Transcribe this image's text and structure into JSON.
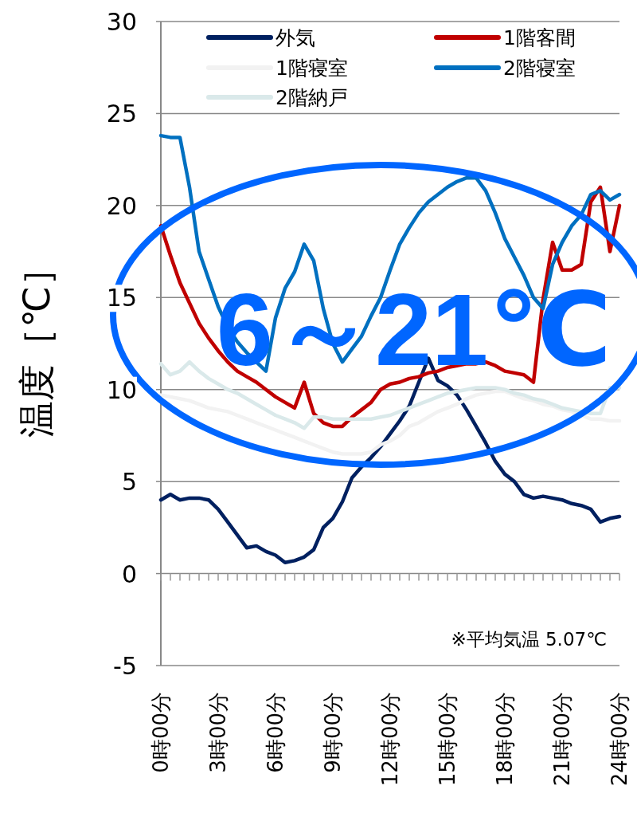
{
  "chart_data": {
    "type": "line",
    "ylabel": "温度［℃］",
    "categories": [
      "0時00分",
      null,
      null,
      null,
      null,
      null,
      "3時00分",
      null,
      null,
      null,
      null,
      null,
      "6時00分",
      null,
      null,
      null,
      null,
      null,
      "9時00分",
      null,
      null,
      null,
      null,
      null,
      "12時00分",
      null,
      null,
      null,
      null,
      null,
      "15時00分",
      null,
      null,
      null,
      null,
      null,
      "18時00分",
      null,
      null,
      null,
      null,
      null,
      "21時00分",
      null,
      null,
      null,
      null,
      null,
      "24時00分"
    ],
    "ylim": [
      -5,
      30
    ],
    "yticks": [
      -5,
      0,
      5,
      10,
      15,
      20,
      25,
      30
    ],
    "grid": "y",
    "legend": "top",
    "marker": "none",
    "line_style": "solid",
    "annotations": [
      "6～21℃",
      "※平均気温 5.07℃"
    ],
    "series": [
      {
        "name": "外気",
        "color": "#002060",
        "values": [
          4.0,
          4.3,
          4.0,
          4.1,
          4.1,
          4.0,
          3.5,
          2.8,
          2.1,
          1.4,
          1.5,
          1.2,
          1.0,
          0.6,
          0.7,
          0.9,
          1.3,
          2.5,
          3.0,
          3.9,
          5.2,
          5.8,
          6.3,
          6.9,
          7.6,
          8.3,
          9.1,
          10.4,
          11.7,
          10.5,
          10.2,
          9.7,
          8.9,
          8.0,
          7.1,
          6.1,
          5.4,
          5.0,
          4.3,
          4.1,
          4.2,
          4.1,
          4.0,
          3.8,
          3.7,
          3.5,
          2.8,
          3.0,
          3.1
        ]
      },
      {
        "name": "1階客間",
        "color": "#c00000",
        "values": [
          18.9,
          17.3,
          15.8,
          14.7,
          13.6,
          12.8,
          12.1,
          11.5,
          11.0,
          10.7,
          10.4,
          10.0,
          9.6,
          9.3,
          9.0,
          10.4,
          8.7,
          8.2,
          8.0,
          8.0,
          8.5,
          8.9,
          9.3,
          10.0,
          10.3,
          10.4,
          10.6,
          10.7,
          10.9,
          11.0,
          11.2,
          11.3,
          11.4,
          11.4,
          11.5,
          11.3,
          11.0,
          10.9,
          10.8,
          10.4,
          14.9,
          18.0,
          16.5,
          16.5,
          16.8,
          20.2,
          21.0,
          17.5,
          20.0
        ]
      },
      {
        "name": "1階寝室",
        "color": "#f2f2f2",
        "values": [
          9.7,
          9.6,
          9.5,
          9.4,
          9.2,
          9.0,
          8.9,
          8.8,
          8.6,
          8.4,
          8.2,
          8.0,
          7.8,
          7.6,
          7.4,
          7.2,
          7.0,
          6.8,
          6.6,
          6.5,
          6.5,
          6.5,
          6.6,
          7.0,
          7.2,
          7.5,
          8.0,
          8.2,
          8.5,
          8.8,
          9.0,
          9.2,
          9.5,
          9.7,
          9.8,
          9.9,
          9.9,
          9.7,
          9.5,
          9.4,
          9.2,
          9.1,
          8.9,
          8.8,
          8.6,
          8.4,
          8.4,
          8.3,
          8.3
        ]
      },
      {
        "name": "2階寝室",
        "color": "#0070c0",
        "values": [
          23.8,
          23.7,
          23.7,
          21.0,
          17.5,
          16.0,
          14.5,
          13.4,
          12.6,
          12.0,
          11.5,
          11.0,
          13.9,
          15.5,
          16.4,
          17.9,
          17.0,
          14.4,
          12.5,
          11.5,
          12.2,
          12.9,
          14.0,
          15.0,
          16.5,
          17.9,
          18.8,
          19.6,
          20.2,
          20.6,
          21.0,
          21.3,
          21.5,
          21.5,
          20.8,
          19.6,
          18.2,
          17.2,
          16.2,
          15.0,
          14.4,
          16.8,
          18.0,
          18.9,
          19.5,
          20.6,
          20.8,
          20.3,
          20.6
        ]
      },
      {
        "name": "2階納戸",
        "color": "#dae9ea",
        "values": [
          11.4,
          10.8,
          11.0,
          11.5,
          11.0,
          10.6,
          10.3,
          10.0,
          9.8,
          9.5,
          9.2,
          8.9,
          8.6,
          8.4,
          8.2,
          7.9,
          8.5,
          8.5,
          8.4,
          8.4,
          8.4,
          8.4,
          8.4,
          8.5,
          8.6,
          8.8,
          9.0,
          9.2,
          9.4,
          9.6,
          9.8,
          9.9,
          10.0,
          10.1,
          10.1,
          10.1,
          10.0,
          9.8,
          9.7,
          9.5,
          9.4,
          9.2,
          9.0,
          8.9,
          8.8,
          8.7,
          8.7,
          10.1,
          10.1
        ]
      }
    ]
  }
}
